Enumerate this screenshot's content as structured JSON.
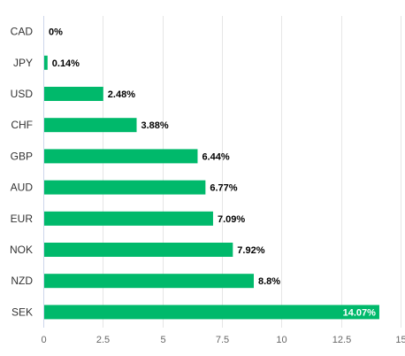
{
  "chart_data": {
    "type": "bar",
    "orientation": "horizontal",
    "categories": [
      "CAD",
      "JPY",
      "USD",
      "CHF",
      "GBP",
      "AUD",
      "EUR",
      "NOK",
      "NZD",
      "SEK"
    ],
    "values": [
      0,
      0.14,
      2.48,
      3.88,
      6.44,
      6.77,
      7.09,
      7.92,
      8.8,
      14.07
    ],
    "data_labels": [
      "0%",
      "0.14%",
      "2.48%",
      "3.88%",
      "6.44%",
      "6.77%",
      "7.09%",
      "7.92%",
      "8.8%",
      "14.07%"
    ],
    "x_ticks": [
      0,
      2.5,
      5,
      7.5,
      10,
      12.5,
      15
    ],
    "x_tick_labels": [
      "0",
      "2.5",
      "5",
      "7.5",
      "10",
      "12.5",
      "15"
    ],
    "xlim": [
      0,
      15
    ],
    "grid": "vertical",
    "legend": "none",
    "bar_color": "#00b96b",
    "label_color": "#000000",
    "inside_label_color": "#ffffff"
  }
}
